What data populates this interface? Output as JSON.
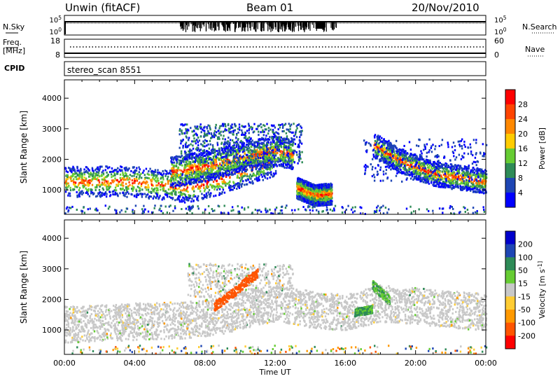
{
  "header": {
    "station": "Unwin (fitACF)",
    "beam": "Beam 01",
    "date": "20/Nov/2010"
  },
  "top_panels": {
    "nsky": {
      "label": "N.Sky",
      "ticks": [
        "10^5",
        "10^0"
      ],
      "right_ticks": [
        "10^5",
        "10^0"
      ],
      "right_label": "N.Search"
    },
    "freq": {
      "label_line1": "Freq.",
      "label_line2": "[MHz]",
      "ticks": [
        "18",
        "8"
      ],
      "right_ticks": [
        "60",
        "0"
      ],
      "right_label": "Nave"
    },
    "cpid": {
      "label": "CPID",
      "value": "stereo_scan 8551"
    }
  },
  "colors": {
    "power_scale": [
      "#0000ff",
      "#1e46b4",
      "#2e8b57",
      "#66cc33",
      "#ffcc00",
      "#ff8800",
      "#ff4400",
      "#ff0000"
    ],
    "velocity_scale": [
      "#ff0000",
      "#ff5500",
      "#ff9900",
      "#ffcc33",
      "#c8c8c8",
      "#66cc33",
      "#2e8b57",
      "#1e46b4",
      "#0000cc"
    ],
    "ground_scatter": "#c8c8c8"
  },
  "chart_data": [
    {
      "type": "heatmap",
      "name": "power",
      "ylabel": "Slant Range [km]",
      "ylim": [
        200,
        4600
      ],
      "yticks": [
        "1000",
        "2000",
        "3000",
        "4000"
      ],
      "ytick_values": [
        1000,
        2000,
        3000,
        4000
      ],
      "xlim": [
        0,
        24
      ],
      "colorbar_label": "Power [dB]",
      "colorbar_ticks": [
        "4",
        "8",
        "12",
        "16",
        "20",
        "24",
        "28"
      ],
      "colorbar_range": [
        0,
        32
      ],
      "bands": [
        {
          "t": [
            0,
            4,
            7,
            9,
            10.5,
            12
          ],
          "center": [
            1300,
            1300,
            1100,
            1400,
            1700,
            2000
          ],
          "width": 500
        },
        {
          "t": [
            6,
            8,
            10,
            12,
            13
          ],
          "center": [
            1600,
            1800,
            2100,
            2300,
            2200
          ],
          "width": 500
        },
        {
          "t": [
            13.2,
            14.2,
            15.2
          ],
          "center": [
            1100,
            850,
            900
          ],
          "width": 350
        },
        {
          "t": [
            17.6,
            19,
            21,
            24
          ],
          "center": [
            2500,
            2000,
            1550,
            1300
          ],
          "width": 400
        }
      ]
    },
    {
      "type": "heatmap",
      "name": "velocity",
      "ylabel": "Slant Range [km]",
      "ylim": [
        200,
        4600
      ],
      "yticks": [
        "1000",
        "2000",
        "3000",
        "4000"
      ],
      "ytick_values": [
        1000,
        2000,
        3000,
        4000
      ],
      "xlim": [
        0,
        24
      ],
      "xticks": [
        "00:00",
        "04:00",
        "08:00",
        "12:00",
        "16:00",
        "20:00",
        "00:00"
      ],
      "xtick_values": [
        0,
        4,
        8,
        12,
        16,
        20,
        24
      ],
      "xlabel": "Time UT",
      "colorbar_label": "Velocity [m s^-1]",
      "colorbar_ticks": [
        "200",
        "100",
        "50",
        "15",
        "-15",
        "-50",
        "-100",
        "-200"
      ],
      "colorbar_range": [
        -250,
        250
      ],
      "ground_band": {
        "t": [
          0,
          4,
          7,
          9,
          11,
          12,
          14,
          16,
          18,
          20,
          24
        ],
        "center": [
          1200,
          1300,
          1350,
          1500,
          1800,
          1900,
          1700,
          1600,
          1900,
          1800,
          1600
        ],
        "width": 600
      },
      "events": [
        {
          "t": [
            8.5,
            9.5,
            10.5,
            11
          ],
          "center": [
            1800,
            2200,
            2700,
            2900
          ],
          "width": 300,
          "vel": -150
        },
        {
          "t": [
            16.5,
            17.5
          ],
          "center": [
            1600,
            1700
          ],
          "width": 250,
          "vel": 60
        },
        {
          "t": [
            17.5,
            18.5
          ],
          "center": [
            2500,
            2000
          ],
          "width": 300,
          "vel": 40
        }
      ]
    }
  ]
}
